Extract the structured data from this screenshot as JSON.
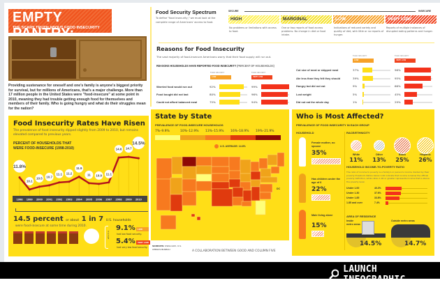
{
  "header": {
    "title": "EMPTY PANTRY:",
    "subtitle": "THE SCARY TRUTH ABOUT FOOD INSECURITY"
  },
  "intro": "Providing sustenance for oneself and one's family is anyone's biggest priority for survival, but for millions of Americans, that's a major challenge. More than 17 million people in the United States were \"food-insecure\" at some point in 2010, meaning they had trouble getting enough food for themselves and members of their family. Who is going hungry and what do their struggles mean for the nation?",
  "spectrum": {
    "title": "Food Security Spectrum",
    "desc": "To define \"food insecurity,\" we must look at the complete range of Americans' access to food.",
    "secure": "SECURE",
    "insecure": "INSECURE",
    "levels": [
      {
        "label": "HIGH",
        "desc": "No problems or limitations with access to food.",
        "color": "#fff25a"
      },
      {
        "label": "MARGINAL",
        "desc": "One or two reports of food access problems. No change in diet or food intake.",
        "color": "#f5e22a"
      },
      {
        "label": "LOW",
        "desc": "Indications of reduced variety and quality of diet, with little or no reports of hunger.",
        "color": "#f7a128"
      },
      {
        "label": "VERY LOW",
        "desc": "Reports of multiple instances of disrupted eating patterns and hunger.",
        "color": "#f0431e"
      }
    ]
  },
  "reasons": {
    "title": "Reasons for Food Insecurity",
    "desc": "The vast majority of food-insecure Americans worry that their food supply will run out.",
    "chart_title": "REASONS HOUSEHOLDS HAVE REPORTED FOOD INSECURITY",
    "unit": "(PERCENT OF HOUSEHOLDS)",
    "tag_label": "FOOD SECURITY",
    "low": "LOW",
    "very_low": "VERY LOW",
    "rows": [
      {
        "label": "Worried food would run out",
        "low": 92,
        "vlow": 99,
        "low_t": "92%",
        "vlow_t": "99%"
      },
      {
        "label": "Food bought did not last",
        "low": 80,
        "vlow": 96,
        "low_t": "80%",
        "vlow_t": "96%"
      },
      {
        "label": "Could not afford balanced meal",
        "low": 75,
        "vlow": 94,
        "low_t": "75%",
        "vlow_t": "94%"
      },
      {
        "label": "Cut size of meal or skipped meal",
        "low": 37,
        "vlow": 96,
        "low_t": "37%",
        "vlow_t": "96%"
      },
      {
        "label": "Ate less than they felt they should",
        "low": 39,
        "vlow": 95,
        "low_t": "39%",
        "vlow_t": "95%"
      },
      {
        "label": "Hungry but did not eat",
        "low": 9,
        "vlow": 66,
        "low_t": "9%",
        "vlow_t": "66%"
      },
      {
        "label": "Lost weight",
        "low": 5,
        "vlow": 45,
        "low_t": "5%",
        "vlow_t": "45%"
      },
      {
        "label": "Did not eat the whole day",
        "low": 1,
        "vlow": 29,
        "low_t": "1%",
        "vlow_t": "29%"
      }
    ]
  },
  "rates": {
    "title": "Food Insecurity Rates Have Risen",
    "desc": "The prevalence of food insecurity dipped slightly from 2009 to 2010, but remains elevated compared to previous years.",
    "chart_title": "PERCENT OF HOUSEHOLDS THAT WERE FOOD-INSECURE (1998-2010)"
  },
  "chart_data": {
    "type": "line",
    "title": "PERCENT OF HOUSEHOLDS THAT WERE FOOD-INSECURE (1998-2010)",
    "categories": [
      "1998",
      "1999",
      "2000",
      "2001",
      "2002",
      "2003",
      "2004",
      "2005",
      "2006",
      "2007",
      "2008",
      "2009",
      "2010"
    ],
    "values": [
      11.8,
      10.1,
      10.5,
      10.7,
      11.1,
      11.2,
      11.9,
      11,
      10.9,
      11.1,
      14.6,
      14.7,
      14.5
    ],
    "labels": [
      "11.8%",
      "10.1",
      "10.5",
      "10.7",
      "11.1",
      "11.2",
      "11.9",
      "11",
      "10.9",
      "11.1",
      "14.6",
      "14.7",
      "14.5%"
    ],
    "color": "#b3121d"
  },
  "summary": {
    "big": "14.5 percent",
    "mid": "or about",
    "ratio": "1 in 7",
    "tail": "U.S. households",
    "line2": "were food-insecure at some time during 2010.",
    "bracket": "which is",
    "low_pct": "9.1%",
    "low_desc": "had low food security.",
    "vlow_pct": "5.4%",
    "vlow_desc": "had very low food security.",
    "low": "LOW",
    "very_low": "VERY LOW"
  },
  "map": {
    "title": "State by State",
    "subtitle": "PREVALENCE OF FOOD-INSECURE HOUSEHOLDS",
    "legend": [
      {
        "label": "7%–9.9%",
        "color": "#ffff7a"
      },
      {
        "label": "10%–12.9%",
        "color": "#f0a31a"
      },
      {
        "label": "13%–15.9%",
        "color": "#f77a1f"
      },
      {
        "label": "16%–18.9%",
        "color": "#e03a0e"
      },
      {
        "label": "19%–21.9%",
        "color": "#8e0a05"
      }
    ],
    "average": "U.S. AVERAGE: 14.6%",
    "dc": "DC",
    "sources_label": "SOURCES:",
    "sources": "USDA.GOV, U.S. CENSUS BUREAU",
    "credit": "A COLLABORATION BETWEEN GOOD AND COLUMN FIVE"
  },
  "who": {
    "title": "Who is Most Affected?",
    "subtitle": "PREVALENCE OF FOOD INSECURITY IN EACH GROUP",
    "household": "HOUSEHOLD",
    "households": [
      {
        "label": "Female mother, no spouse",
        "pct": "35%"
      },
      {
        "label": "Has children under the age of 6",
        "pct": "22%"
      },
      {
        "label": "Male living alone",
        "pct": "15%"
      }
    ],
    "race_title": "RACE/ETHNICITY",
    "races": [
      {
        "label": "White",
        "pct": "11%"
      },
      {
        "label": "Other",
        "pct": "13%"
      },
      {
        "label": "Black",
        "pct": "25%"
      },
      {
        "label": "Hispanic",
        "pct": "26%"
      }
    ],
    "income_title": "HOUSEHOLD INCOME-TO-POVERTY RATIO",
    "income_desc": "The ratio of income to poverty is a family's or person's income divided by their poverty threshold. Ratios below 1.00 indicate that income is below the official poverty definition, while ratios 1.00 or greater represents income that is above the poverty level.",
    "income": [
      {
        "label": "Under 1.00",
        "pct": "40.2%",
        "v": 40.2
      },
      {
        "label": "Under 1.30",
        "pct": "37.6%",
        "v": 37.6
      },
      {
        "label": "Under 1.85",
        "pct": "33.8%",
        "v": 33.8
      },
      {
        "label": "1.85 and over",
        "pct": "7.4%",
        "v": 7.4
      }
    ],
    "area_title": "AREA OF RESIDENCE",
    "inside": "Inside metro areas",
    "inside_pct": "14.5%",
    "outside": "Outside metro areas",
    "outside_pct": "14.7%"
  },
  "footer": {
    "launch": "LAUNCH INFOGRAPHIC"
  }
}
